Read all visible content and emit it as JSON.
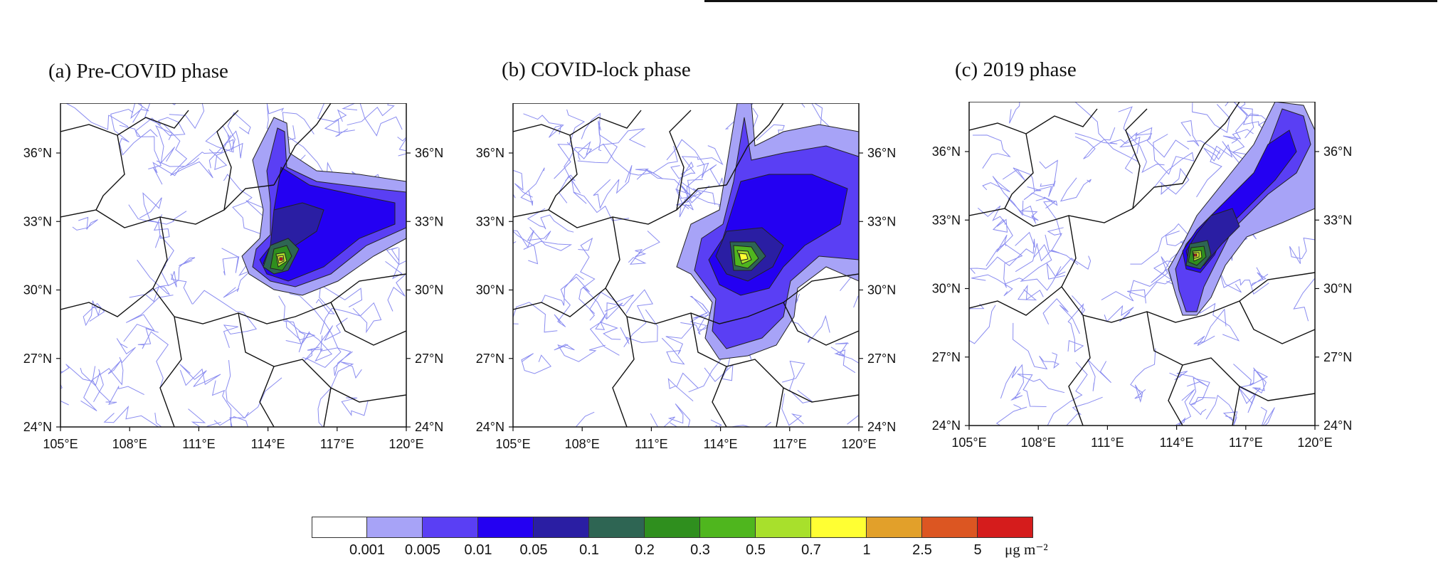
{
  "header_fragment": ", … …, … … … … ,",
  "panels": [
    {
      "title": "(a) Pre-COVID phase"
    },
    {
      "title": "(b) COVID-lock phase"
    },
    {
      "title": "(c) 2019 phase"
    }
  ],
  "lon_ticks": [
    "105°E",
    "108°E",
    "111°E",
    "114°E",
    "117°E",
    "120°E"
  ],
  "lat_ticks": [
    "36°N",
    "33°N",
    "30°N",
    "27°N",
    "24°N"
  ],
  "colorbar": {
    "colors": [
      "#ffffff",
      "#a7a3f7",
      "#5a3ff4",
      "#2400f2",
      "#2a1ea3",
      "#2e6553",
      "#2f8f1e",
      "#4fb61e",
      "#a8e02c",
      "#ffff33",
      "#e2a02a",
      "#dc5622",
      "#d51c1c"
    ],
    "labels": [
      "0.001",
      "0.005",
      "0.01",
      "0.05",
      "0.1",
      "0.2",
      "0.3",
      "0.5",
      "0.7",
      "1",
      "2.5",
      "5"
    ],
    "unit": "μg m⁻²"
  }
}
